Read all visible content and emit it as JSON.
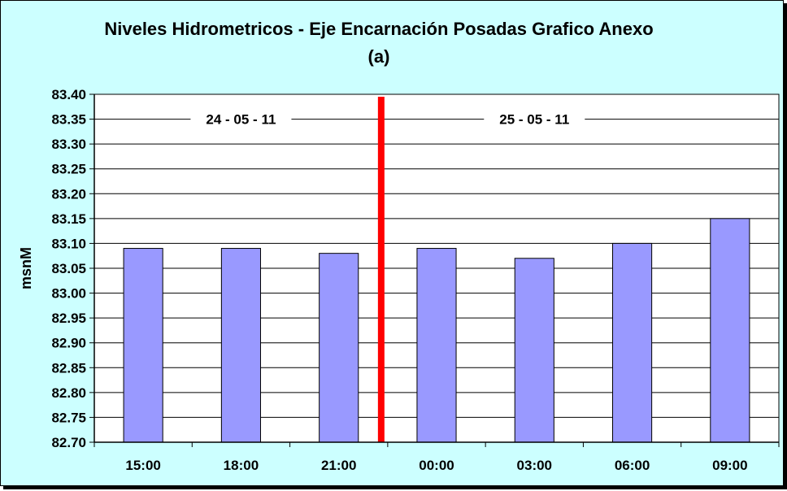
{
  "chart_data": {
    "type": "bar",
    "title": "Niveles Hidrometricos - Eje Encarnación Posadas Grafico Anexo",
    "subtitle": "(a)",
    "ylabel": "msnM",
    "xlabel": "",
    "categories": [
      "15:00",
      "18:00",
      "21:00",
      "00:00",
      "03:00",
      "06:00",
      "09:00"
    ],
    "values": [
      83.09,
      83.09,
      83.08,
      83.09,
      83.07,
      83.1,
      83.15
    ],
    "ylim": [
      82.7,
      83.4
    ],
    "ytick_step": 0.05,
    "ytick_labels": [
      "82.70",
      "82.75",
      "82.80",
      "82.85",
      "82.90",
      "82.95",
      "83.00",
      "83.05",
      "83.10",
      "83.15",
      "83.20",
      "83.25",
      "83.30",
      "83.35",
      "83.40"
    ],
    "grid": true,
    "legend": "none",
    "annotations": [
      {
        "text": "24 - 05 - 11",
        "after_category_index": 1
      },
      {
        "text": "25 - 05 - 11",
        "after_category_index": 4
      }
    ],
    "day_divider_between": [
      2,
      3
    ]
  },
  "colors": {
    "background": "#ccffff",
    "plot_area": "#ffffff",
    "bar_fill": "#9999ff",
    "bar_stroke": "#000000",
    "divider": "#ff0000",
    "gridline": "#000000"
  }
}
